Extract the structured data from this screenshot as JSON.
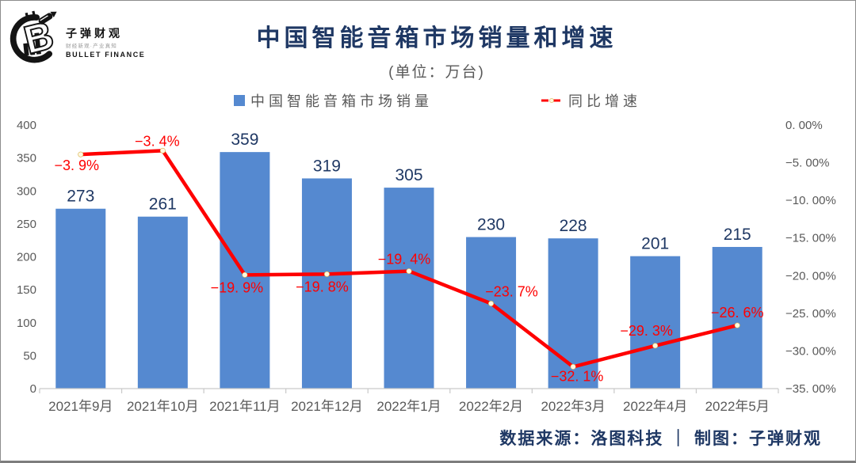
{
  "brand": {
    "name_cn": "子弹财观",
    "tagline": "财经新观·产业真知",
    "name_en": "BULLET FINANCE"
  },
  "header": {
    "title": "中国智能音箱市场销量和增速",
    "subtitle": "(单位：万台)"
  },
  "legend": {
    "bar_label": "中国智能音箱市场销量",
    "line_label": "同比增速"
  },
  "chart_data": {
    "type": "bar+line",
    "title": "中国智能音箱市场销量和增速",
    "subtitle": "(单位：万台)",
    "legend_position": "top",
    "grid": false,
    "categories": [
      "2021年9月",
      "2021年10月",
      "2021年11月",
      "2021年12月",
      "2022年1月",
      "2022年2月",
      "2022年3月",
      "2022年4月",
      "2022年5月"
    ],
    "series": [
      {
        "name": "中国智能音箱市场销量",
        "type": "bar",
        "axis": "left",
        "values": [
          273,
          261,
          359,
          319,
          305,
          230,
          228,
          201,
          215
        ],
        "value_labels": [
          "273",
          "261",
          "359",
          "319",
          "305",
          "230",
          "228",
          "201",
          "215"
        ]
      },
      {
        "name": "同比增速",
        "type": "line",
        "axis": "right",
        "values": [
          -3.9,
          -3.4,
          -19.9,
          -19.8,
          -19.4,
          -23.7,
          -32.1,
          -29.3,
          -26.6
        ],
        "value_labels": [
          "−3. 9%",
          "−3. 4%",
          "−19. 9%",
          "−19. 8%",
          "−19. 4%",
          "−23. 7%",
          "−32. 1%",
          "−29. 3%",
          "−26. 6%"
        ],
        "label_placement": [
          [
            -5,
            14
          ],
          [
            -7,
            -12
          ],
          [
            -10,
            16
          ],
          [
            -6,
            16
          ],
          [
            -6,
            -15
          ],
          [
            26,
            -15
          ],
          [
            5,
            12
          ],
          [
            -11,
            -19
          ],
          [
            0,
            -16
          ]
        ]
      }
    ],
    "left_axis": {
      "min": 0,
      "max": 400,
      "tick_values": [
        400,
        350,
        300,
        250,
        200,
        150,
        100,
        50,
        0
      ],
      "tick_labels": [
        "400",
        "350",
        "300",
        "250",
        "200",
        "150",
        "100",
        "50",
        "0"
      ]
    },
    "right_axis": {
      "min": -35,
      "max": 0,
      "tick_values": [
        0,
        -5,
        -10,
        -15,
        -20,
        -25,
        -30,
        -35
      ],
      "tick_labels": [
        "0. 00%",
        "−5. 00%",
        "−10. 00%",
        "−15. 00%",
        "−20. 00%",
        "−25. 00%",
        "−30. 00%",
        "−35. 00%"
      ]
    },
    "colors": {
      "bar": "#5589d0",
      "bar_label": "#1f3864",
      "line": "#ff0000",
      "line_label": "#ff0000",
      "marker_fill": "#fff8e1",
      "axis_text": "#595959",
      "axis_line": "#c9c9c9",
      "title": "#1f3864"
    }
  },
  "footer": {
    "source_line": "数据来源：洛图科技 ｜ 制图：子弹财观"
  }
}
